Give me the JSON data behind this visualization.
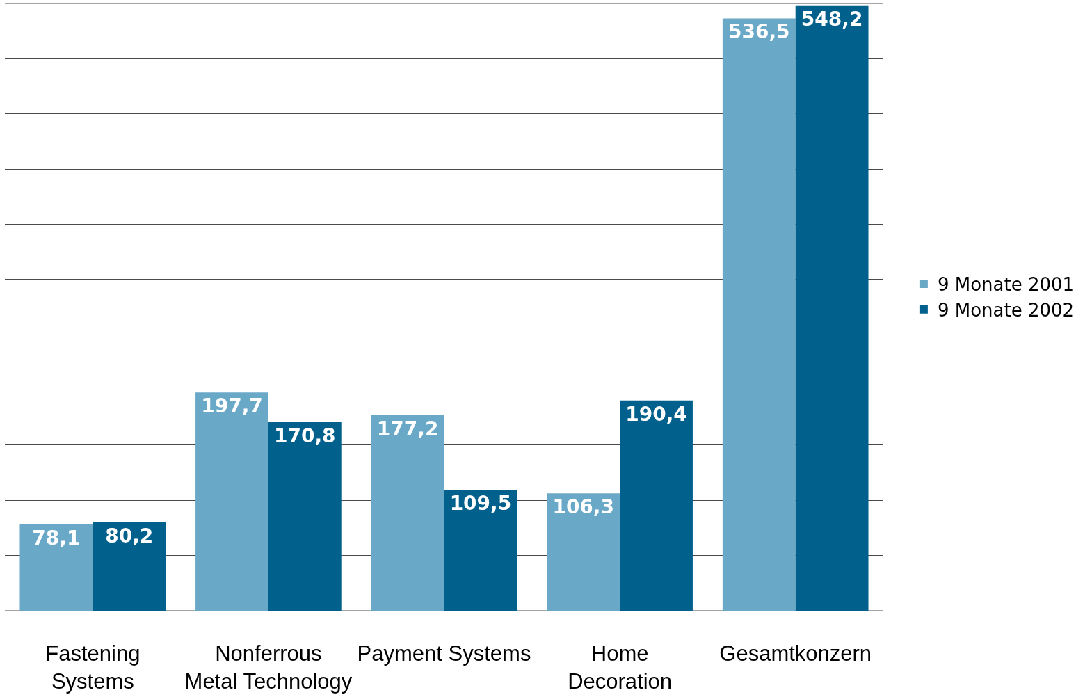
{
  "chart_data": {
    "type": "bar",
    "categories": [
      "Fastening\nSystems",
      "Nonferrous\nMetal Technology",
      "Payment Systems",
      "Home\nDecoration",
      "Gesamtkonzern"
    ],
    "series": [
      {
        "name": "9 Monate 2001",
        "color": "#6aa8c8",
        "values": [
          78.1,
          197.7,
          177.2,
          106.3,
          536.5
        ],
        "value_labels": [
          "78,1",
          "197,7",
          "177,2",
          "106,3",
          "536,5"
        ]
      },
      {
        "name": "9 Monate 2002",
        "color": "#02608c",
        "values": [
          80.2,
          170.8,
          109.5,
          190.4,
          548.2
        ],
        "value_labels": [
          "80,2",
          "170,8",
          "109,5",
          "190,4",
          "548,2"
        ]
      }
    ],
    "ylim": [
      0,
      550
    ],
    "yticks": [
      {
        "value": 0,
        "label": null
      },
      {
        "value": 50,
        "label": null
      },
      {
        "value": 100,
        "label": null
      },
      {
        "value": 150,
        "label": null
      },
      {
        "value": 200,
        "label": null
      },
      {
        "value": 250,
        "label": null
      },
      {
        "value": 300,
        "label": null
      },
      {
        "value": 350,
        "label": null
      },
      {
        "value": 400,
        "label": null
      },
      {
        "value": 450,
        "label": null
      },
      {
        "value": 500,
        "label": null
      },
      {
        "value": 550,
        "label": null
      }
    ],
    "tick_labels": "x",
    "grid": "y",
    "legend": "right"
  }
}
